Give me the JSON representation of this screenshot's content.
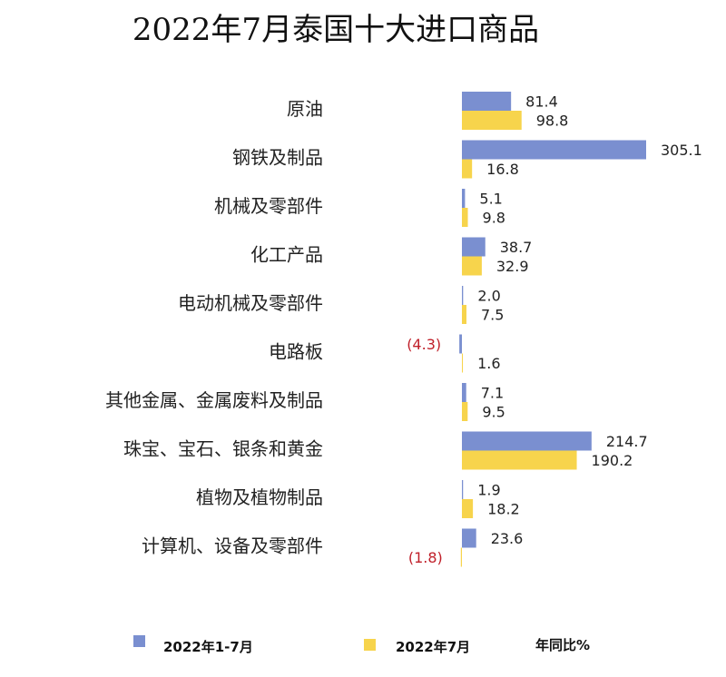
{
  "chart_data": {
    "type": "bar",
    "orientation": "horizontal",
    "title": "2022年7月泰国十大进口商品",
    "categories": [
      "原油",
      "钢铁及制品",
      "机械及零部件",
      "化工产品",
      "电动机械及零部件",
      "电路板",
      "其他金属、金属废料及制品",
      "珠宝、宝石、银条和黄金",
      "植物及植物制品",
      "计算机、设备及零部件"
    ],
    "series": [
      {
        "name": "2022年1-7月",
        "color": "#7a8fd0",
        "values": [
          81.4,
          305.1,
          5.1,
          38.7,
          2.0,
          -4.3,
          7.1,
          214.7,
          1.9,
          23.6
        ],
        "labels": [
          "81.4",
          "305.1",
          "5.1",
          "38.7",
          "2.0",
          "(4.3)",
          "7.1",
          "214.7",
          "1.9",
          "23.6"
        ]
      },
      {
        "name": "2022年7月",
        "color": "#f7d44c",
        "values": [
          98.8,
          16.8,
          9.8,
          32.9,
          7.5,
          1.6,
          9.5,
          190.2,
          18.2,
          -1.8
        ],
        "labels": [
          "98.8",
          "16.8",
          "9.8",
          "32.9",
          "7.5",
          "1.6",
          "9.5",
          "190.2",
          "18.2",
          "(1.8)"
        ]
      }
    ],
    "unit_label": "年同比%",
    "negative_color": "#c0202a",
    "legend_position": "bottom"
  }
}
